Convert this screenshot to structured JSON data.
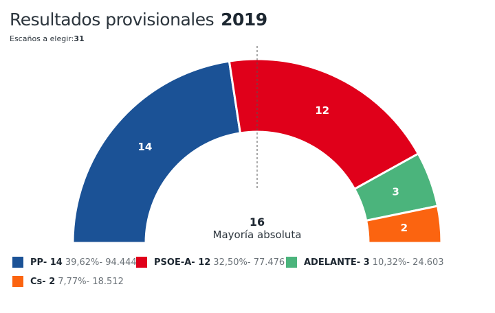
{
  "header": {
    "title": "Resultados provisionales",
    "year": "2019",
    "seats_label": "Escaños a elegir:",
    "seats_total": "31"
  },
  "majority": {
    "value": "16",
    "label": "Mayoría absoluta"
  },
  "chart_data": {
    "type": "pie",
    "subtype": "half-donut (parliament)",
    "title": "Resultados provisionales 2019",
    "total_seats": 31,
    "majority_seats": 16,
    "majority_marker": "vertical dashed line at center",
    "categories": [
      "PP",
      "PSOE-A",
      "ADELANTE",
      "Cs"
    ],
    "values": [
      14,
      12,
      3,
      2
    ],
    "series": [
      {
        "name": "PP",
        "seats": 14,
        "percent": "39,62%",
        "votes": "94.444",
        "color": "#1b5296"
      },
      {
        "name": "PSOE-A",
        "seats": 12,
        "percent": "32,50%",
        "votes": "77.476",
        "color": "#e0001a"
      },
      {
        "name": "ADELANTE",
        "seats": 3,
        "percent": "10,32%",
        "votes": "24.603",
        "color": "#4bb47c"
      },
      {
        "name": "Cs",
        "seats": 2,
        "percent": "7,77%",
        "votes": "18.512",
        "color": "#fb6410"
      }
    ],
    "legend_position": "bottom"
  },
  "legend": [
    {
      "name": "PP- 14",
      "stats": "39,62%- 94.444"
    },
    {
      "name": "PSOE-A- 12",
      "stats": "32,50%- 77.476"
    },
    {
      "name": "ADELANTE- 3",
      "stats": "10,32%- 24.603"
    },
    {
      "name": "Cs- 2",
      "stats": "7,77%- 18.512"
    }
  ]
}
